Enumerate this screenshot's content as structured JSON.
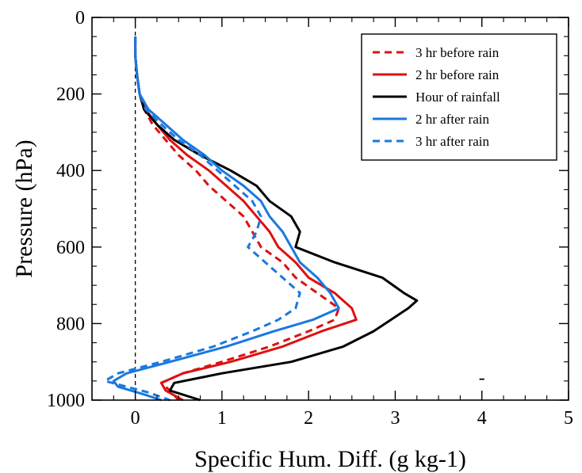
{
  "chart_data": {
    "type": "line",
    "xlabel": "Specific Hum. Diff. (g kg-1)",
    "ylabel": "Pressure (hPa)",
    "xlim": [
      -0.5,
      5
    ],
    "ylim": [
      1000,
      0
    ],
    "y_inverted": true,
    "x_ticks": [
      "0",
      "1",
      "2",
      "3",
      "4",
      "5"
    ],
    "y_ticks": [
      "0",
      "200",
      "400",
      "600",
      "800",
      "1000"
    ],
    "grid": false,
    "legend_position": "top-right",
    "zero_line": {
      "x": 0,
      "style": "dashed"
    },
    "annotations": [
      {
        "text": "-",
        "x": 4.0,
        "y": 943
      }
    ],
    "series": [
      {
        "name": "3 hr before rain",
        "color": "#dd1111",
        "dash": "dashed",
        "pressure": [
          50,
          100,
          150,
          200,
          240,
          280,
          320,
          360,
          400,
          440,
          480,
          520,
          560,
          600,
          640,
          680,
          720,
          760,
          790,
          820,
          860,
          900,
          930,
          955,
          975,
          1000
        ],
        "values": [
          0,
          0,
          0.02,
          0.05,
          0.1,
          0.2,
          0.35,
          0.5,
          0.7,
          0.85,
          1.05,
          1.25,
          1.35,
          1.45,
          1.7,
          1.85,
          2.1,
          2.35,
          2.3,
          2.0,
          1.55,
          1.0,
          0.55,
          0.3,
          0.4,
          0.5
        ]
      },
      {
        "name": "2 hr before rain",
        "color": "#dd1111",
        "dash": "solid",
        "pressure": [
          50,
          100,
          150,
          200,
          240,
          280,
          320,
          360,
          400,
          440,
          480,
          520,
          560,
          600,
          640,
          680,
          720,
          760,
          790,
          820,
          860,
          900,
          930,
          955,
          975,
          1000
        ],
        "values": [
          0,
          0,
          0.02,
          0.05,
          0.12,
          0.25,
          0.4,
          0.6,
          0.85,
          1.05,
          1.25,
          1.4,
          1.55,
          1.65,
          1.85,
          2.0,
          2.3,
          2.5,
          2.55,
          2.15,
          1.7,
          1.1,
          0.55,
          0.3,
          0.35,
          0.55
        ]
      },
      {
        "name": "Hour of rainfall",
        "color": "#000000",
        "dash": "solid",
        "pressure": [
          50,
          100,
          150,
          200,
          240,
          280,
          320,
          360,
          400,
          440,
          480,
          520,
          560,
          600,
          640,
          680,
          720,
          740,
          760,
          790,
          820,
          860,
          900,
          930,
          955,
          975,
          1000
        ],
        "values": [
          0,
          0,
          0.02,
          0.05,
          0.1,
          0.25,
          0.45,
          0.75,
          1.1,
          1.4,
          1.55,
          1.8,
          1.9,
          1.85,
          2.3,
          2.85,
          3.1,
          3.25,
          3.15,
          2.95,
          2.75,
          2.4,
          1.8,
          1.0,
          0.45,
          0.4,
          0.75
        ]
      },
      {
        "name": "2 hr after rain",
        "color": "#1a78e0",
        "dash": "solid",
        "pressure": [
          50,
          100,
          150,
          200,
          240,
          280,
          320,
          360,
          400,
          440,
          480,
          520,
          560,
          600,
          640,
          680,
          720,
          760,
          790,
          820,
          860,
          900,
          930,
          950,
          965,
          985,
          1000
        ],
        "values": [
          0,
          0,
          0.02,
          0.05,
          0.15,
          0.35,
          0.55,
          0.8,
          1.0,
          1.25,
          1.45,
          1.55,
          1.7,
          1.8,
          1.9,
          2.1,
          2.25,
          2.35,
          2.05,
          1.6,
          1.05,
          0.4,
          -0.1,
          -0.25,
          -0.2,
          0.1,
          0.3
        ]
      },
      {
        "name": "3 hr after rain",
        "color": "#1a78e0",
        "dash": "dashed",
        "pressure": [
          50,
          100,
          150,
          200,
          240,
          280,
          320,
          360,
          400,
          440,
          480,
          520,
          560,
          600,
          640,
          680,
          720,
          760,
          790,
          820,
          860,
          900,
          930,
          950,
          965,
          980,
          1000
        ],
        "values": [
          0,
          0,
          0.02,
          0.05,
          0.12,
          0.3,
          0.5,
          0.75,
          0.95,
          1.15,
          1.35,
          1.45,
          1.4,
          1.3,
          1.5,
          1.7,
          1.9,
          1.85,
          1.65,
          1.35,
          0.9,
          0.3,
          -0.2,
          -0.35,
          -0.1,
          0.15,
          0.4
        ]
      }
    ]
  }
}
